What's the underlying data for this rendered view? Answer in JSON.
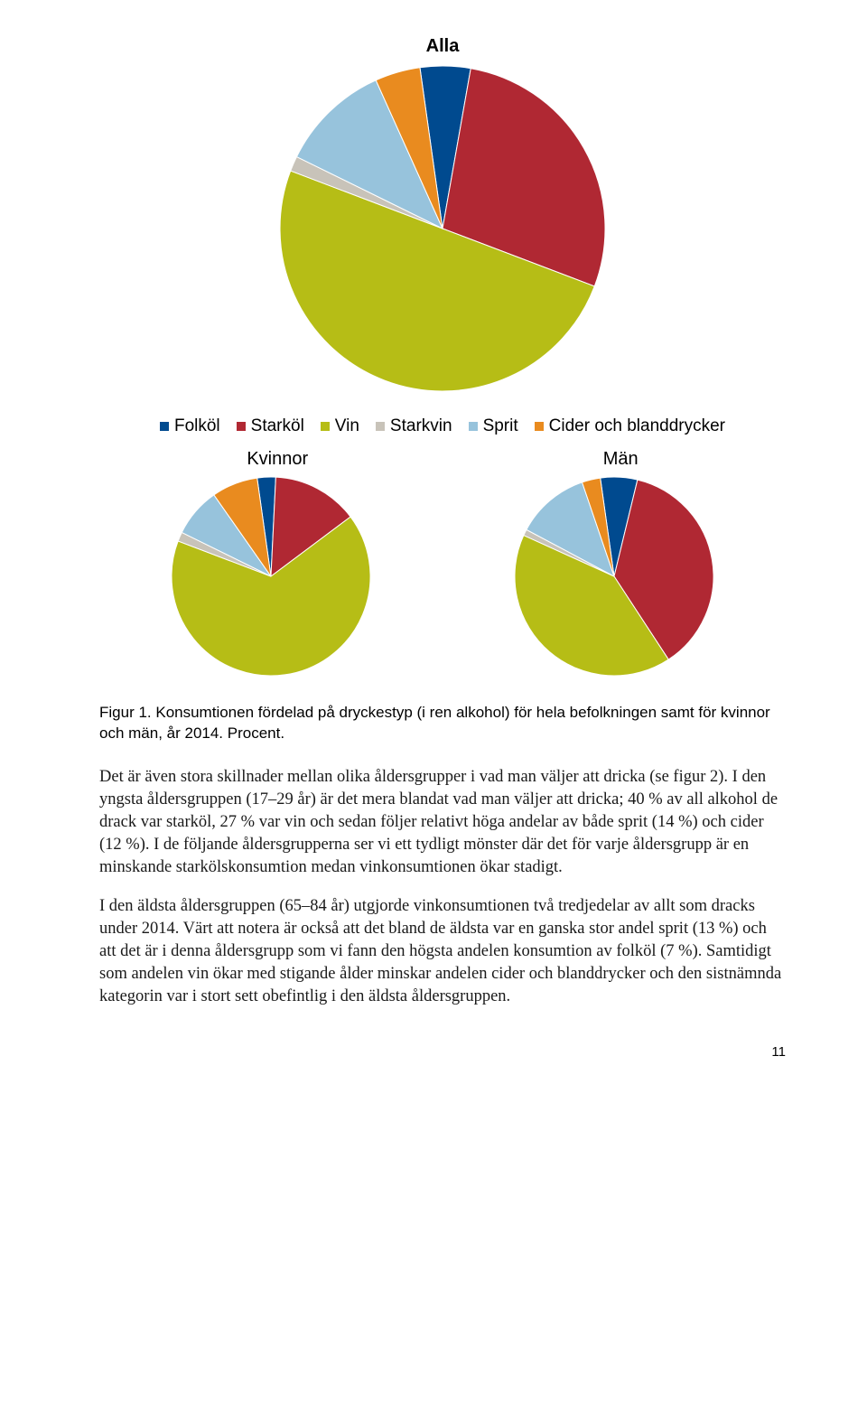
{
  "colors": {
    "folkol": "#004a8f",
    "starkol": "#b02833",
    "vin": "#b6bd16",
    "starkvin": "#c8c3b9",
    "sprit": "#97c3dc",
    "cider": "#e98b1f",
    "background": "#ffffff"
  },
  "legend": [
    {
      "key": "folkol",
      "label": "Folköl"
    },
    {
      "key": "starkol",
      "label": "Starköl"
    },
    {
      "key": "vin",
      "label": "Vin"
    },
    {
      "key": "starkvin",
      "label": "Starkvin"
    },
    {
      "key": "sprit",
      "label": "Sprit"
    },
    {
      "key": "cider",
      "label": "Cider och blanddrycker"
    }
  ],
  "charts": {
    "alla": {
      "title": "Alla",
      "type": "pie",
      "radius": 180,
      "start_angle_deg": -8,
      "slices": [
        {
          "key": "folkol",
          "value": 5
        },
        {
          "key": "starkol",
          "value": 28
        },
        {
          "key": "vin",
          "value": 50
        },
        {
          "key": "starkvin",
          "value": 1.5
        },
        {
          "key": "sprit",
          "value": 11
        },
        {
          "key": "cider",
          "value": 4.5
        }
      ]
    },
    "kvinnor": {
      "title": "Kvinnor",
      "type": "pie",
      "radius": 110,
      "start_angle_deg": -8,
      "slices": [
        {
          "key": "folkol",
          "value": 3
        },
        {
          "key": "starkol",
          "value": 14
        },
        {
          "key": "vin",
          "value": 66
        },
        {
          "key": "starkvin",
          "value": 1.5
        },
        {
          "key": "sprit",
          "value": 8
        },
        {
          "key": "cider",
          "value": 7.5
        }
      ]
    },
    "man": {
      "title": "Män",
      "type": "pie",
      "radius": 110,
      "start_angle_deg": -8,
      "slices": [
        {
          "key": "folkol",
          "value": 6
        },
        {
          "key": "starkol",
          "value": 37
        },
        {
          "key": "vin",
          "value": 41
        },
        {
          "key": "starkvin",
          "value": 1
        },
        {
          "key": "sprit",
          "value": 12
        },
        {
          "key": "cider",
          "value": 3
        }
      ]
    }
  },
  "caption": "Figur 1. Konsumtionen fördelad på dryckestyp (i ren alkohol) för hela befolkningen samt för kvinnor och män, år 2014. Procent.",
  "paragraphs": [
    "Det är även stora skillnader mellan olika åldersgrupper i vad man väljer att dricka (se figur 2). I den yngsta åldersgruppen (17–29 år) är det mera blandat vad man väljer att dricka; 40 % av all alkohol de drack var starköl, 27 % var vin och sedan följer relativt höga andelar av både sprit (14 %) och cider (12 %). I de följande åldersgrupperna ser vi ett tydligt mönster där det för varje åldersgrupp är en minskande starkölskonsumtion medan vinkonsumtionen ökar stadigt.",
    "I den äldsta åldersgruppen (65–84 år) utgjorde vinkonsumtionen två tredjedelar av allt som dracks under 2014. Värt att notera är också att det bland de äldsta var en ganska stor andel sprit (13 %) och att det är i denna åldersgrupp som vi fann den högsta andelen konsumtion av folköl (7 %). Samtidigt som andelen vin ökar med stigande ålder minskar andelen cider och blanddrycker och den sistnämnda kategorin var i stort sett obefintlig i den äldsta åldersgruppen."
  ],
  "page_number": "11",
  "typography": {
    "title_fontsize": 20,
    "legend_fontsize": 19,
    "caption_fontsize": 17,
    "body_fontsize": 18.5,
    "body_font": "Georgia"
  }
}
